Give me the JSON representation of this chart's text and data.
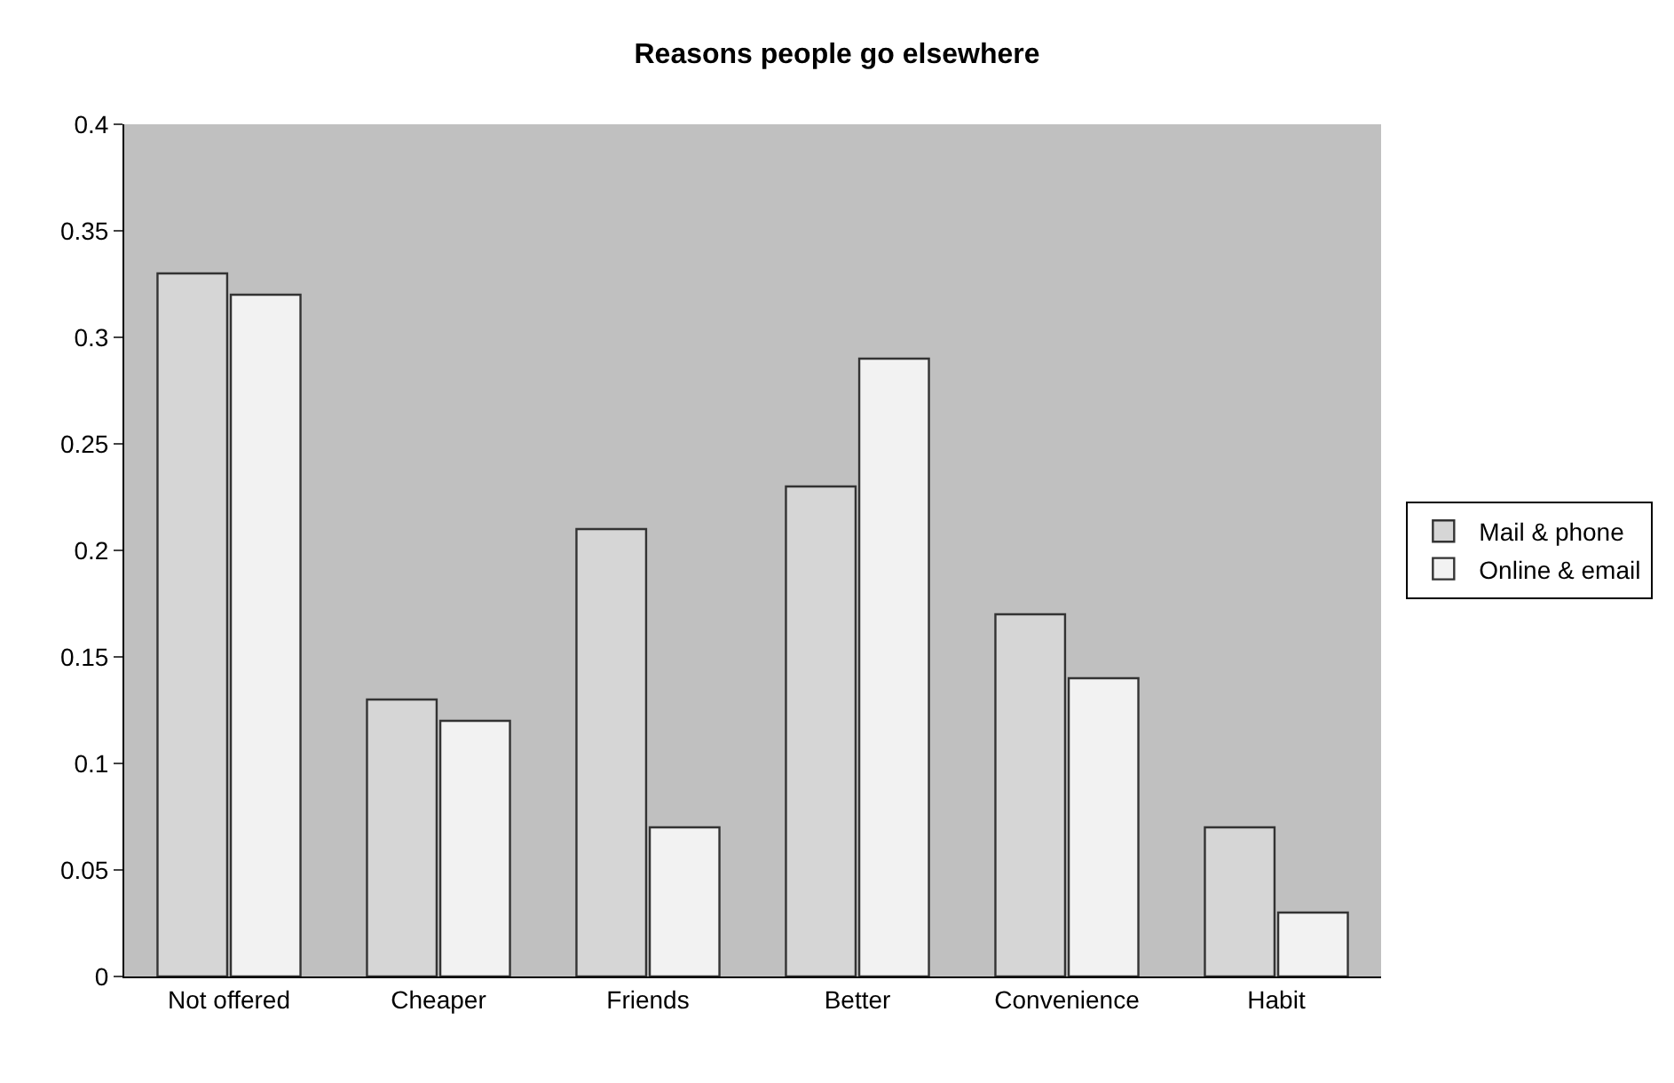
{
  "chart_data": {
    "type": "bar",
    "title": "Reasons people go elsewhere",
    "categories": [
      "Not offered",
      "Cheaper",
      "Friends",
      "Better",
      "Convenience",
      "Habit"
    ],
    "series": [
      {
        "name": "Mail & phone",
        "color": "#d6d6d6",
        "values": [
          0.33,
          0.13,
          0.21,
          0.23,
          0.17,
          0.07
        ]
      },
      {
        "name": "Online & email",
        "color": "#f2f2f2",
        "values": [
          0.32,
          0.12,
          0.07,
          0.29,
          0.14,
          0.03
        ]
      }
    ],
    "ylim": [
      0,
      0.4
    ],
    "yticks": [
      0,
      0.05,
      0.1,
      0.15,
      0.2,
      0.25,
      0.3,
      0.35,
      0.4
    ],
    "grid": false,
    "legend": "right"
  }
}
